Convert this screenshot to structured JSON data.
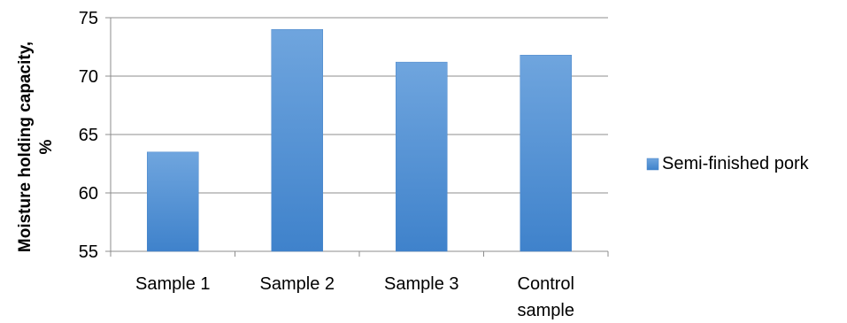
{
  "chart_data": {
    "type": "bar",
    "categories": [
      "Sample 1",
      "Sample 2",
      "Sample 3",
      "Control sample"
    ],
    "category_lines": [
      [
        "Sample 1"
      ],
      [
        "Sample 2"
      ],
      [
        "Sample 3"
      ],
      [
        "Control",
        "sample"
      ]
    ],
    "series": [
      {
        "name": "Semi-finished pork",
        "values": [
          63.5,
          74.0,
          71.2,
          71.8
        ]
      }
    ],
    "ylabel_lines": [
      "Moisture holding capacity,",
      "%"
    ],
    "xlabel": "",
    "title": "",
    "ylim": [
      55,
      75
    ],
    "yticks": [
      55,
      60,
      65,
      70,
      75
    ],
    "grid": true,
    "legend_position": "right",
    "colors": {
      "bar_top": "#6FA5DE",
      "bar_bottom": "#3F82CB",
      "bar_edge": "#4A86C8",
      "grid": "#8C8C8C",
      "axis": "#8C8C8C"
    }
  }
}
